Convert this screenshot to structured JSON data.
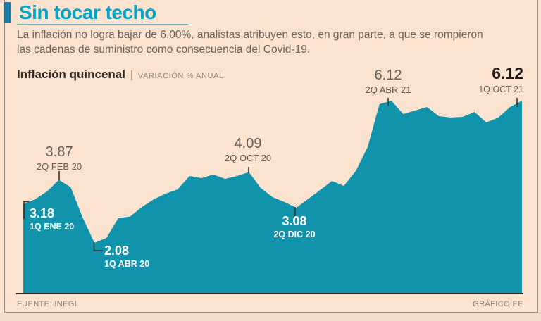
{
  "header": {
    "title": "Sin tocar techo",
    "lines": [
      "La inflación no logra bajar de 6.00%, analistas atribuyen esto, en gran parte, a que se rompieron",
      "las cadenas de suministro como consecuencia del Covid-19."
    ]
  },
  "section": {
    "label": "Inflación quincenal",
    "separator": "|",
    "sublabel": "VARIACIÓN % ANUAL"
  },
  "chart_data": {
    "type": "area",
    "title": "Inflación quincenal",
    "ylabel": "VARIACIÓN % ANUAL",
    "x_frequency": "quincenal (biweekly)",
    "x_start": "1Q ENE 20",
    "x_end": "1Q OCT 21",
    "y_visible_range": [
      0.66,
      6.4
    ],
    "grid": false,
    "legend": false,
    "points": [
      3.18,
      3.32,
      3.54,
      3.87,
      3.66,
      2.8,
      2.08,
      2.22,
      2.78,
      2.83,
      3.1,
      3.32,
      3.48,
      3.6,
      3.98,
      3.92,
      4.02,
      3.9,
      3.98,
      4.09,
      3.64,
      3.38,
      3.24,
      3.08,
      3.33,
      3.58,
      3.84,
      3.7,
      4.12,
      4.8,
      6.02,
      6.12,
      5.74,
      5.84,
      5.94,
      5.68,
      5.64,
      5.66,
      5.8,
      5.5,
      5.64,
      5.94,
      6.12
    ],
    "annotations": [
      {
        "index": 0,
        "value": "3.18",
        "period": "1Q ENE 20",
        "style": "white"
      },
      {
        "index": 3,
        "value": "3.87",
        "period": "2Q FEB 20",
        "style": "gray"
      },
      {
        "index": 6,
        "value": "2.08",
        "period": "1Q ABR 20",
        "style": "white"
      },
      {
        "index": 19,
        "value": "4.09",
        "period": "2Q OCT 20",
        "style": "gray"
      },
      {
        "index": 23,
        "value": "3.08",
        "period": "2Q DIC 20",
        "style": "white"
      },
      {
        "index": 31,
        "value": "6.12",
        "period": "2Q ABR 21",
        "style": "gray"
      },
      {
        "index": 42,
        "value": "6.12",
        "period": "1Q OCT 21",
        "style": "bold"
      }
    ]
  },
  "footer": {
    "source": "FUENTE: INEGI",
    "credit": "GRÁFICO EE"
  },
  "colors": {
    "area": "#1194ab",
    "title": "#00a5c9",
    "title_marker": "#1c7ca1",
    "baseline": "#35302b",
    "background": "#fbe3cf",
    "border": "#95897d",
    "body_text": "#6e6157",
    "annotation_gray": "#675b52"
  }
}
